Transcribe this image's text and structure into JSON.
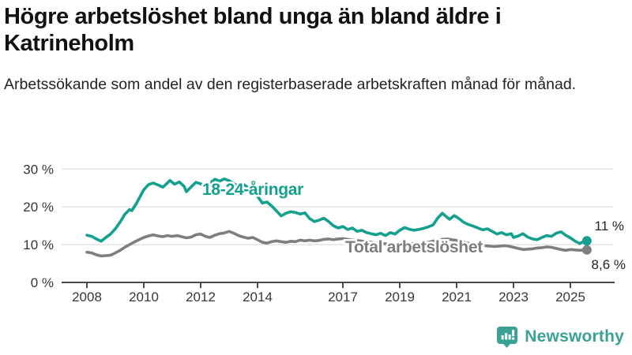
{
  "header": {
    "title": "Högre arbetslöshet bland unga än bland äldre i Katrineholm",
    "subtitle": "Arbetssökande som andel av den registerbaserade arbetskraften månad för månad."
  },
  "chart_data": {
    "type": "line",
    "title": "Högre arbetslöshet bland unga än bland äldre i Katrineholm",
    "subtitle": "Arbetssökande som andel av den registerbaserade arbetskraften månad för månad.",
    "grid": "horizontal-only",
    "legend_position": "inline-labels-on-lines",
    "x_axis": {
      "range": [
        2007.9,
        2025.75
      ],
      "ticks": [
        {
          "v": 2008,
          "label": "2008"
        },
        {
          "v": 2010,
          "label": "2010"
        },
        {
          "v": 2012,
          "label": "2012"
        },
        {
          "v": 2014,
          "label": "2014"
        },
        {
          "v": 2017,
          "label": "2017"
        },
        {
          "v": 2019,
          "label": "2019"
        },
        {
          "v": 2021,
          "label": "2021"
        },
        {
          "v": 2023,
          "label": "2023"
        },
        {
          "v": 2025,
          "label": "2025"
        }
      ]
    },
    "y_axis": {
      "range": [
        0,
        30
      ],
      "ticks": [
        {
          "v": 0,
          "label": "0 %"
        },
        {
          "v": 10,
          "label": "10 %"
        },
        {
          "v": 20,
          "label": "20 %"
        },
        {
          "v": 30,
          "label": "30 %"
        }
      ]
    },
    "series": [
      {
        "name": "Total arbetslöshet",
        "color": "#7e7e82",
        "end_value": 8.6,
        "end_label": "8,6 %",
        "points": [
          [
            2008.0,
            8.0
          ],
          [
            2008.17,
            7.8
          ],
          [
            2008.33,
            7.3
          ],
          [
            2008.5,
            7.0
          ],
          [
            2008.67,
            7.1
          ],
          [
            2008.83,
            7.2
          ],
          [
            2009.0,
            7.8
          ],
          [
            2009.17,
            8.5
          ],
          [
            2009.33,
            9.3
          ],
          [
            2009.5,
            10.0
          ],
          [
            2009.67,
            10.7
          ],
          [
            2009.83,
            11.3
          ],
          [
            2010.0,
            11.9
          ],
          [
            2010.17,
            12.3
          ],
          [
            2010.33,
            12.6
          ],
          [
            2010.5,
            12.3
          ],
          [
            2010.67,
            12.1
          ],
          [
            2010.83,
            12.4
          ],
          [
            2011.0,
            12.2
          ],
          [
            2011.17,
            12.4
          ],
          [
            2011.33,
            12.1
          ],
          [
            2011.5,
            11.8
          ],
          [
            2011.67,
            12.0
          ],
          [
            2011.83,
            12.6
          ],
          [
            2012.0,
            12.8
          ],
          [
            2012.17,
            12.2
          ],
          [
            2012.33,
            11.9
          ],
          [
            2012.5,
            12.5
          ],
          [
            2012.67,
            12.9
          ],
          [
            2012.83,
            13.1
          ],
          [
            2013.0,
            13.5
          ],
          [
            2013.17,
            13.0
          ],
          [
            2013.33,
            12.4
          ],
          [
            2013.5,
            12.0
          ],
          [
            2013.67,
            11.7
          ],
          [
            2013.83,
            11.9
          ],
          [
            2014.0,
            11.3
          ],
          [
            2014.17,
            10.6
          ],
          [
            2014.33,
            10.4
          ],
          [
            2014.5,
            10.8
          ],
          [
            2014.67,
            11.0
          ],
          [
            2014.83,
            10.8
          ],
          [
            2015.0,
            10.6
          ],
          [
            2015.17,
            10.9
          ],
          [
            2015.33,
            10.8
          ],
          [
            2015.5,
            11.2
          ],
          [
            2015.67,
            11.0
          ],
          [
            2015.83,
            11.2
          ],
          [
            2016.0,
            11.0
          ],
          [
            2016.17,
            11.1
          ],
          [
            2016.33,
            11.4
          ],
          [
            2016.5,
            11.5
          ],
          [
            2016.67,
            11.3
          ],
          [
            2016.83,
            11.5
          ],
          [
            2017.0,
            11.6
          ],
          [
            2017.17,
            11.4
          ],
          [
            2017.33,
            11.2
          ],
          [
            2017.5,
            11.1
          ],
          [
            2017.67,
            10.9
          ],
          [
            2017.83,
            10.7
          ],
          [
            2018.0,
            10.6
          ],
          [
            2018.17,
            10.4
          ],
          [
            2018.33,
            10.3
          ],
          [
            2018.5,
            10.2
          ],
          [
            2018.67,
            10.1
          ],
          [
            2018.83,
            10.0
          ],
          [
            2019.0,
            10.1
          ],
          [
            2019.17,
            10.2
          ],
          [
            2019.33,
            10.2
          ],
          [
            2019.5,
            10.3
          ],
          [
            2019.67,
            10.4
          ],
          [
            2019.83,
            10.5
          ],
          [
            2020.0,
            10.6
          ],
          [
            2020.17,
            10.9
          ],
          [
            2020.33,
            11.2
          ],
          [
            2020.5,
            11.4
          ],
          [
            2020.67,
            11.5
          ],
          [
            2020.83,
            11.3
          ],
          [
            2021.0,
            11.1
          ],
          [
            2021.17,
            10.8
          ],
          [
            2021.33,
            10.5
          ],
          [
            2021.5,
            10.2
          ],
          [
            2021.67,
            10.0
          ],
          [
            2021.83,
            9.8
          ],
          [
            2022.0,
            9.7
          ],
          [
            2022.17,
            9.6
          ],
          [
            2022.33,
            9.5
          ],
          [
            2022.5,
            9.6
          ],
          [
            2022.67,
            9.7
          ],
          [
            2022.83,
            9.6
          ],
          [
            2023.0,
            9.3
          ],
          [
            2023.17,
            9.0
          ],
          [
            2023.33,
            8.7
          ],
          [
            2023.5,
            8.8
          ],
          [
            2023.67,
            8.9
          ],
          [
            2023.83,
            9.1
          ],
          [
            2024.0,
            9.2
          ],
          [
            2024.17,
            9.4
          ],
          [
            2024.33,
            9.3
          ],
          [
            2024.5,
            9.0
          ],
          [
            2024.67,
            8.7
          ],
          [
            2024.83,
            8.5
          ],
          [
            2025.0,
            8.7
          ],
          [
            2025.17,
            8.6
          ],
          [
            2025.33,
            8.5
          ],
          [
            2025.45,
            8.6
          ],
          [
            2025.58,
            8.6
          ]
        ]
      },
      {
        "name": "18-24-åringar",
        "color": "#13a08f",
        "end_value": 11,
        "end_label": "11 %",
        "points": [
          [
            2008.0,
            12.5
          ],
          [
            2008.17,
            12.2
          ],
          [
            2008.33,
            11.5
          ],
          [
            2008.5,
            10.9
          ],
          [
            2008.67,
            11.9
          ],
          [
            2008.83,
            12.8
          ],
          [
            2009.0,
            14.2
          ],
          [
            2009.17,
            16.0
          ],
          [
            2009.33,
            18.0
          ],
          [
            2009.5,
            19.3
          ],
          [
            2009.58,
            19.0
          ],
          [
            2009.75,
            21.0
          ],
          [
            2009.92,
            23.4
          ],
          [
            2010.0,
            24.5
          ],
          [
            2010.17,
            25.9
          ],
          [
            2010.33,
            26.3
          ],
          [
            2010.5,
            25.8
          ],
          [
            2010.67,
            25.2
          ],
          [
            2010.83,
            26.3
          ],
          [
            2010.92,
            27.0
          ],
          [
            2011.08,
            26.0
          ],
          [
            2011.25,
            26.6
          ],
          [
            2011.42,
            25.4
          ],
          [
            2011.5,
            24.0
          ],
          [
            2011.67,
            25.3
          ],
          [
            2011.83,
            26.5
          ],
          [
            2012.0,
            26.1
          ],
          [
            2012.17,
            25.3
          ],
          [
            2012.33,
            26.3
          ],
          [
            2012.5,
            27.3
          ],
          [
            2012.67,
            26.8
          ],
          [
            2012.83,
            27.4
          ],
          [
            2013.0,
            26.9
          ],
          [
            2013.17,
            26.1
          ],
          [
            2013.33,
            25.4
          ],
          [
            2013.5,
            26.0
          ],
          [
            2013.67,
            25.1
          ],
          [
            2013.83,
            24.1
          ],
          [
            2014.0,
            22.8
          ],
          [
            2014.17,
            21.0
          ],
          [
            2014.33,
            21.3
          ],
          [
            2014.5,
            20.2
          ],
          [
            2014.67,
            18.9
          ],
          [
            2014.83,
            17.6
          ],
          [
            2015.0,
            18.3
          ],
          [
            2015.17,
            18.7
          ],
          [
            2015.33,
            18.5
          ],
          [
            2015.5,
            18.1
          ],
          [
            2015.67,
            18.4
          ],
          [
            2015.83,
            16.9
          ],
          [
            2016.0,
            16.1
          ],
          [
            2016.17,
            16.5
          ],
          [
            2016.33,
            17.0
          ],
          [
            2016.5,
            16.1
          ],
          [
            2016.67,
            15.0
          ],
          [
            2016.83,
            14.4
          ],
          [
            2017.0,
            14.8
          ],
          [
            2017.17,
            14.0
          ],
          [
            2017.33,
            14.4
          ],
          [
            2017.5,
            13.5
          ],
          [
            2017.67,
            13.8
          ],
          [
            2017.83,
            13.2
          ],
          [
            2018.0,
            12.9
          ],
          [
            2018.17,
            12.6
          ],
          [
            2018.33,
            13.0
          ],
          [
            2018.5,
            12.4
          ],
          [
            2018.67,
            13.2
          ],
          [
            2018.83,
            12.8
          ],
          [
            2019.0,
            13.8
          ],
          [
            2019.17,
            14.5
          ],
          [
            2019.33,
            14.1
          ],
          [
            2019.5,
            13.8
          ],
          [
            2019.67,
            14.0
          ],
          [
            2019.83,
            14.3
          ],
          [
            2020.0,
            14.7
          ],
          [
            2020.17,
            15.2
          ],
          [
            2020.33,
            17.0
          ],
          [
            2020.5,
            18.3
          ],
          [
            2020.67,
            17.2
          ],
          [
            2020.75,
            16.7
          ],
          [
            2020.92,
            17.7
          ],
          [
            2021.08,
            16.9
          ],
          [
            2021.25,
            15.9
          ],
          [
            2021.42,
            15.3
          ],
          [
            2021.58,
            14.9
          ],
          [
            2021.75,
            14.4
          ],
          [
            2021.92,
            13.9
          ],
          [
            2022.08,
            14.2
          ],
          [
            2022.25,
            13.5
          ],
          [
            2022.42,
            12.8
          ],
          [
            2022.58,
            13.2
          ],
          [
            2022.75,
            12.6
          ],
          [
            2022.92,
            12.9
          ],
          [
            2023.0,
            11.9
          ],
          [
            2023.17,
            12.3
          ],
          [
            2023.33,
            12.9
          ],
          [
            2023.5,
            12.0
          ],
          [
            2023.67,
            11.5
          ],
          [
            2023.83,
            11.3
          ],
          [
            2024.0,
            11.9
          ],
          [
            2024.17,
            12.4
          ],
          [
            2024.33,
            12.2
          ],
          [
            2024.5,
            13.0
          ],
          [
            2024.67,
            13.4
          ],
          [
            2024.83,
            12.5
          ],
          [
            2025.0,
            11.8
          ],
          [
            2025.17,
            10.9
          ],
          [
            2025.33,
            10.3
          ],
          [
            2025.45,
            10.8
          ],
          [
            2025.58,
            11.0
          ]
        ]
      }
    ],
    "colors": {
      "youth_line": "#13a08f",
      "total_line": "#7e7e82",
      "gridline": "#e3e3e3",
      "axis": "#4a4a4e",
      "axis_text": "#37373b",
      "end_label_text": "#222222"
    }
  },
  "footer": {
    "brand": "Newsworthy",
    "logo_icon": "bar-chart-speech-bubble-icon",
    "brand_color": "#3aa294"
  }
}
